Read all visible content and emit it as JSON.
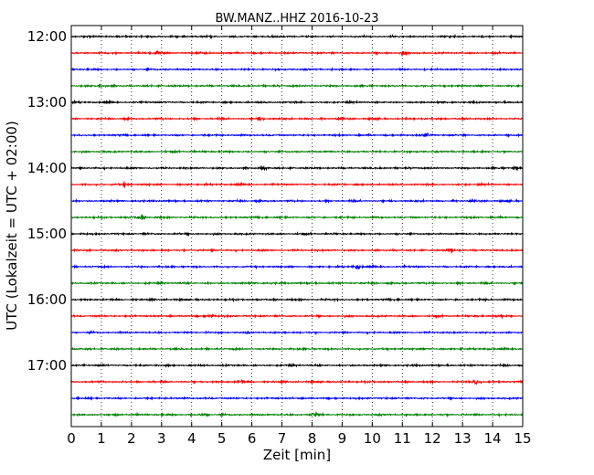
{
  "chart_data": {
    "type": "line",
    "title": "BW.MANZ..HHZ 2016-10-23",
    "xlabel": "Zeit  [min]",
    "ylabel": "UTC (Lokalzeit = UTC + 02:00)",
    "xlim": [
      0,
      15
    ],
    "x_ticks": [
      0,
      1,
      2,
      3,
      4,
      5,
      6,
      7,
      8,
      9,
      10,
      11,
      12,
      13,
      14,
      15
    ],
    "x_tick_labels": [
      "0",
      "1",
      "2",
      "3",
      "4",
      "5",
      "6",
      "7",
      "8",
      "9",
      "10",
      "11",
      "12",
      "13",
      "14",
      "15"
    ],
    "y_tick_labels": [
      "12:00",
      "13:00",
      "14:00",
      "15:00",
      "16:00",
      "17:00"
    ],
    "y_tick_rows": [
      0,
      4,
      8,
      12,
      16,
      20
    ],
    "grid": "vertical-dotted",
    "trace_count": 24,
    "trace_colors": [
      "#000000",
      "#ff0000",
      "#0000ff",
      "#008000"
    ],
    "amplitude": {
      "base": 0.9,
      "bursts": [
        {
          "row": 1,
          "t": 2.9,
          "a": 2.4
        },
        {
          "row": 1,
          "t": 11.0,
          "a": 2.2
        },
        {
          "row": 3,
          "t": 1.0,
          "a": 1.8
        },
        {
          "row": 5,
          "t": 6.3,
          "a": 1.8
        },
        {
          "row": 6,
          "t": 11.8,
          "a": 1.8
        },
        {
          "row": 8,
          "t": 6.4,
          "a": 2.0
        },
        {
          "row": 8,
          "t": 14.8,
          "a": 2.2
        },
        {
          "row": 9,
          "t": 1.8,
          "a": 2.0
        },
        {
          "row": 11,
          "t": 2.3,
          "a": 2.8
        },
        {
          "row": 13,
          "t": 12.6,
          "a": 2.2
        },
        {
          "row": 14,
          "t": 9.5,
          "a": 2.0
        },
        {
          "row": 17,
          "t": 4.6,
          "a": 2.4
        },
        {
          "row": 17,
          "t": 14.3,
          "a": 2.6
        },
        {
          "row": 21,
          "t": 5.6,
          "a": 2.4
        },
        {
          "row": 21,
          "t": 13.5,
          "a": 3.0
        },
        {
          "row": 23,
          "t": 8.1,
          "a": 3.0
        },
        {
          "row": 23,
          "t": 4.4,
          "a": 2.0
        }
      ]
    }
  }
}
